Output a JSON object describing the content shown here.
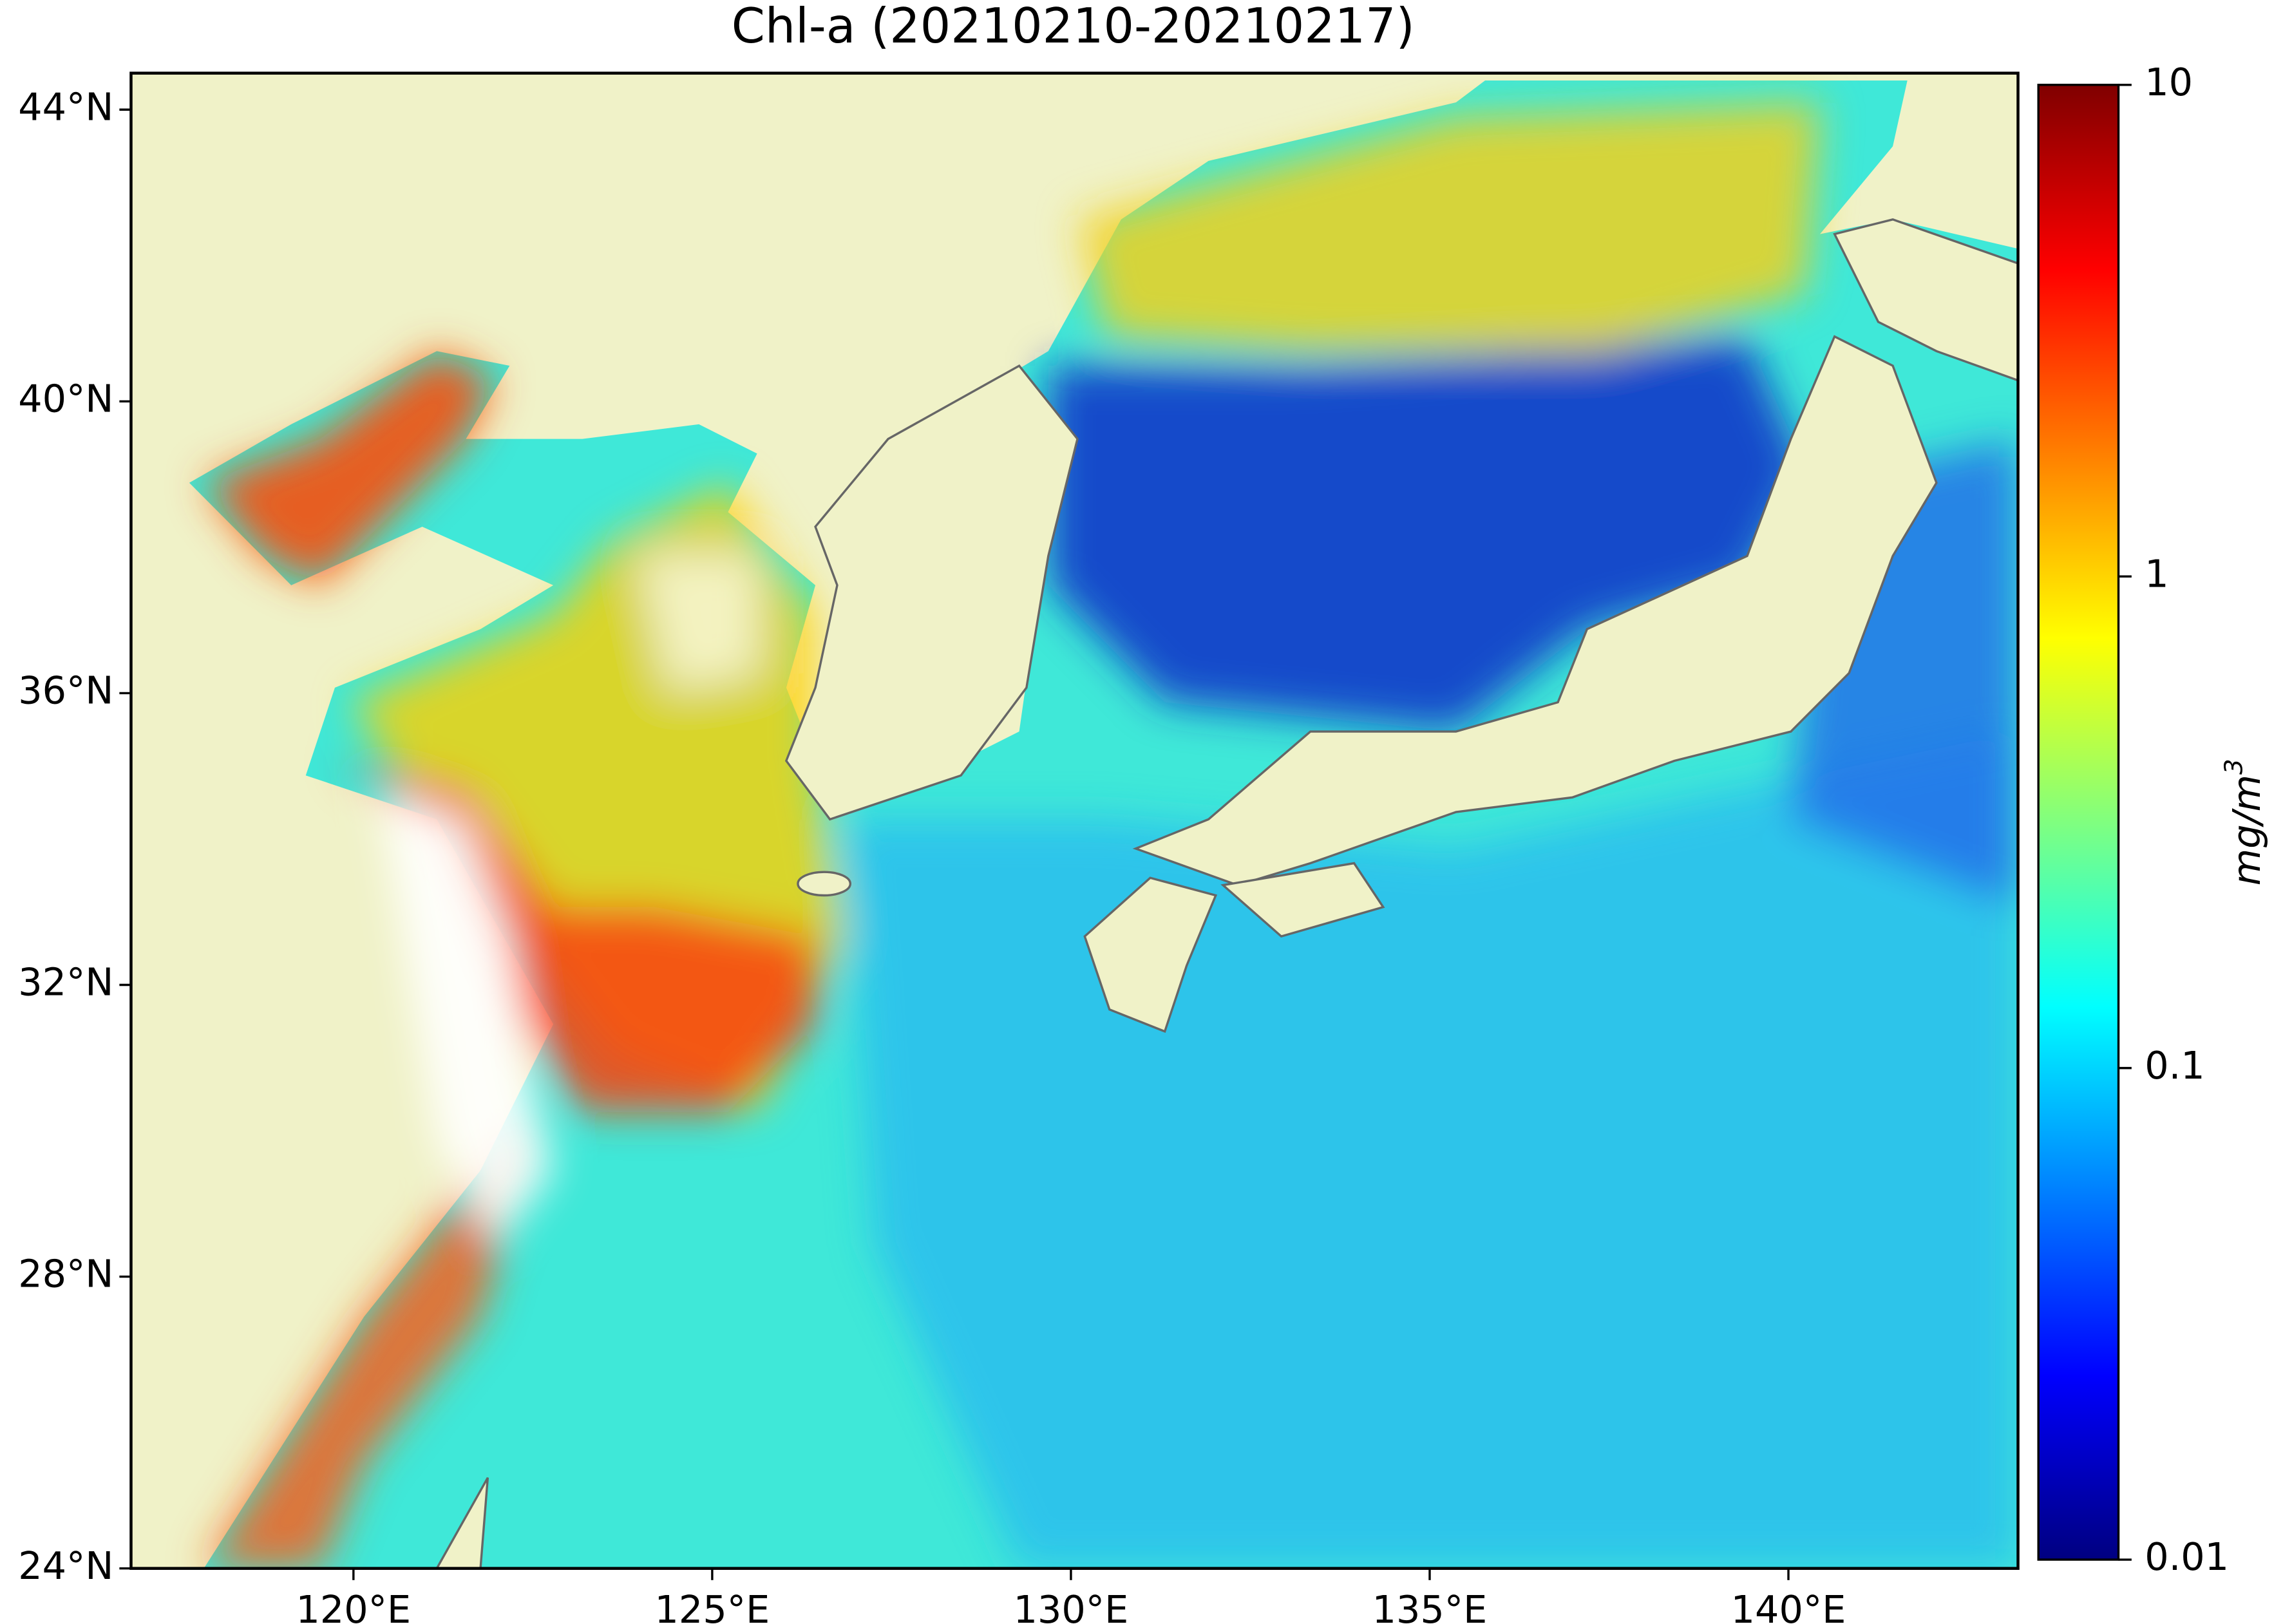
{
  "map": {
    "title": "Chl-a (20210210-20210217)",
    "xlim": [
      116.9,
      143.2
    ],
    "ylim": [
      24,
      44.5
    ],
    "xticks": [
      {
        "value": 120,
        "label": "120°E"
      },
      {
        "value": 125,
        "label": "125°E"
      },
      {
        "value": 130,
        "label": "130°E"
      },
      {
        "value": 135,
        "label": "135°E"
      },
      {
        "value": 140,
        "label": "140°E"
      }
    ],
    "yticks": [
      {
        "value": 24,
        "label": "24°N"
      },
      {
        "value": 28,
        "label": "28°N"
      },
      {
        "value": 32,
        "label": "32°N"
      },
      {
        "value": 36,
        "label": "36°N"
      },
      {
        "value": 40,
        "label": "40°N"
      },
      {
        "value": 44,
        "label": "44°N"
      }
    ],
    "colorbar": {
      "scale": "log",
      "lim": [
        0.01,
        10
      ],
      "ticks": [
        0.01,
        0.1,
        1,
        10
      ],
      "label": "mg/m",
      "label_superscript": "3",
      "colormap": "jet"
    }
  }
}
